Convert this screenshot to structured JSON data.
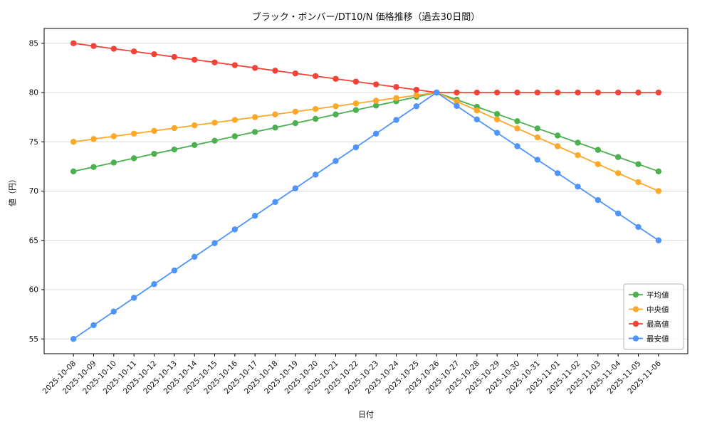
{
  "chart_data": {
    "type": "line",
    "title": "ブラック・ボンバー/DT10/N 価格推移（過去30日間）",
    "xlabel": "日付",
    "ylabel": "値（円）",
    "grid": "horizontal",
    "legend_position": "lower right",
    "ylim": [
      53.5,
      86.5
    ],
    "yticks": [
      55,
      60,
      65,
      70,
      75,
      80,
      85
    ],
    "x": [
      "2025-10-08",
      "2025-10-09",
      "2025-10-10",
      "2025-10-11",
      "2025-10-12",
      "2025-10-13",
      "2025-10-14",
      "2025-10-15",
      "2025-10-16",
      "2025-10-17",
      "2025-10-18",
      "2025-10-19",
      "2025-10-20",
      "2025-10-21",
      "2025-10-22",
      "2025-10-23",
      "2025-10-24",
      "2025-10-25",
      "2025-10-26",
      "2025-10-27",
      "2025-10-28",
      "2025-10-29",
      "2025-10-30",
      "2025-10-31",
      "2025-11-01",
      "2025-11-02",
      "2025-11-03",
      "2025-11-04",
      "2025-11-05",
      "2025-11-06"
    ],
    "series": [
      {
        "name": "平均値",
        "color": "#4caf50",
        "values": [
          72.0,
          72.44,
          72.89,
          73.33,
          73.78,
          74.22,
          74.67,
          75.11,
          75.56,
          76.0,
          76.44,
          76.89,
          77.33,
          77.78,
          78.22,
          78.67,
          79.11,
          79.56,
          80.0,
          79.27,
          78.55,
          77.82,
          77.09,
          76.36,
          75.64,
          74.91,
          74.18,
          73.45,
          72.73,
          72.0
        ]
      },
      {
        "name": "中央値",
        "color": "#ffa726",
        "values": [
          75.0,
          75.28,
          75.56,
          75.83,
          76.11,
          76.39,
          76.67,
          76.94,
          77.22,
          77.5,
          77.78,
          78.06,
          78.33,
          78.61,
          78.89,
          79.17,
          79.44,
          79.72,
          80.0,
          79.09,
          78.18,
          77.27,
          76.36,
          75.45,
          74.55,
          73.64,
          72.73,
          71.82,
          70.91,
          70.0
        ]
      },
      {
        "name": "最高値",
        "color": "#f44336",
        "values": [
          85.0,
          84.72,
          84.44,
          84.17,
          83.89,
          83.61,
          83.33,
          83.06,
          82.78,
          82.5,
          82.22,
          81.94,
          81.67,
          81.39,
          81.11,
          80.83,
          80.56,
          80.28,
          80.0,
          80.0,
          80.0,
          80.0,
          80.0,
          80.0,
          80.0,
          80.0,
          80.0,
          80.0,
          80.0,
          80.0
        ]
      },
      {
        "name": "最安値",
        "color": "#4d94ff",
        "values": [
          55.0,
          56.39,
          57.78,
          59.17,
          60.56,
          61.94,
          63.33,
          64.72,
          66.11,
          67.5,
          68.89,
          70.28,
          71.67,
          73.06,
          74.44,
          75.83,
          77.22,
          78.61,
          80.0,
          78.64,
          77.27,
          75.91,
          74.55,
          73.18,
          71.82,
          70.45,
          69.09,
          67.73,
          66.36,
          65.0
        ]
      }
    ]
  }
}
